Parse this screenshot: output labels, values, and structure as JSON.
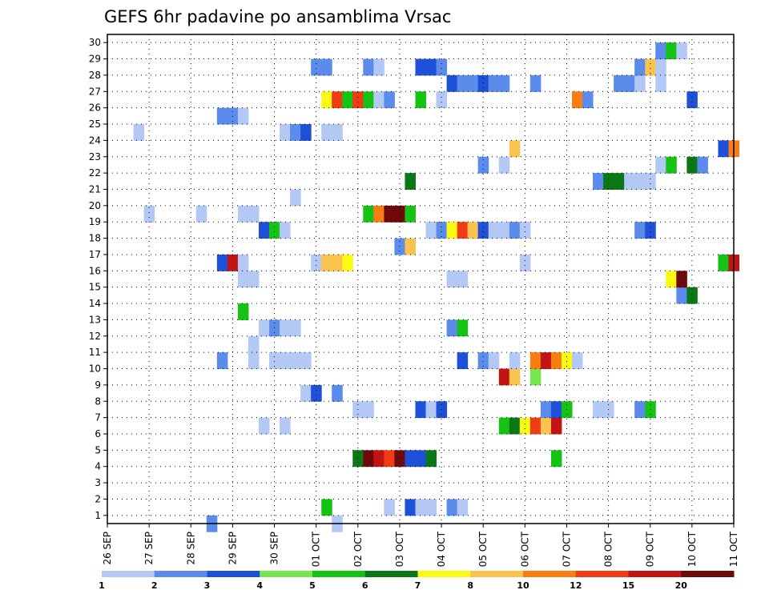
{
  "chart_data": {
    "type": "heatmap",
    "title": "GEFS 6hr padavine po ansamblima Vrsac",
    "xlabel": "",
    "ylabel": "",
    "x_tick_labels": [
      "26 SEP",
      "27 SEP",
      "28 SEP",
      "29 SEP",
      "30 SEP",
      "01 OCT",
      "02 OCT",
      "03 OCT",
      "04 OCT",
      "05 OCT",
      "06 OCT",
      "07 OCT",
      "08 OCT",
      "09 OCT",
      "10 OCT",
      "11 OCT"
    ],
    "y_tick_labels": [
      "1",
      "2",
      "3",
      "4",
      "5",
      "6",
      "7",
      "8",
      "9",
      "10",
      "11",
      "12",
      "13",
      "14",
      "15",
      "16",
      "17",
      "18",
      "19",
      "20",
      "21",
      "22",
      "23",
      "24",
      "25",
      "26",
      "27",
      "28",
      "29",
      "30"
    ],
    "xlim": [
      0,
      60
    ],
    "ylim": [
      0,
      30
    ],
    "grid": true,
    "colorbar": {
      "placement": "bottom",
      "labels": [
        "1",
        "2",
        "3",
        "4",
        "5",
        "6",
        "7",
        "8",
        "10",
        "12",
        "15",
        "20"
      ],
      "colors": [
        "#b4c8f5",
        "#5c8ceb",
        "#1e50d8",
        "#78e650",
        "#14c314",
        "#0a7814",
        "#fafa14",
        "#fac350",
        "#fa7d14",
        "#f03c14",
        "#c31414",
        "#6e0a0a"
      ]
    },
    "cells": [
      [
        0,
        10,
        2
      ],
      [
        0,
        22,
        1
      ],
      [
        1,
        21,
        5
      ],
      [
        1,
        27,
        1
      ],
      [
        1,
        29,
        3
      ],
      [
        1,
        30,
        1
      ],
      [
        1,
        31,
        1
      ],
      [
        1,
        33,
        2
      ],
      [
        1,
        34,
        1
      ],
      [
        4,
        24,
        6
      ],
      [
        4,
        25,
        12
      ],
      [
        4,
        26,
        11
      ],
      [
        4,
        27,
        10
      ],
      [
        4,
        28,
        12
      ],
      [
        4,
        29,
        3
      ],
      [
        4,
        30,
        3
      ],
      [
        4,
        31,
        6
      ],
      [
        4,
        43,
        5
      ],
      [
        6,
        15,
        1
      ],
      [
        6,
        17,
        1
      ],
      [
        6,
        38,
        5
      ],
      [
        6,
        39,
        6
      ],
      [
        6,
        40,
        7
      ],
      [
        6,
        41,
        10
      ],
      [
        6,
        42,
        8
      ],
      [
        6,
        43,
        11
      ],
      [
        7,
        24,
        1
      ],
      [
        7,
        25,
        1
      ],
      [
        7,
        30,
        3
      ],
      [
        7,
        31,
        1
      ],
      [
        7,
        32,
        3
      ],
      [
        7,
        42,
        2
      ],
      [
        7,
        43,
        3
      ],
      [
        7,
        44,
        5
      ],
      [
        7,
        47,
        1
      ],
      [
        7,
        48,
        1
      ],
      [
        7,
        51,
        2
      ],
      [
        7,
        52,
        5
      ],
      [
        8,
        19,
        1
      ],
      [
        8,
        20,
        3
      ],
      [
        8,
        22,
        2
      ],
      [
        9,
        38,
        11
      ],
      [
        9,
        39,
        8
      ],
      [
        9,
        41,
        4
      ],
      [
        10,
        11,
        2
      ],
      [
        10,
        14,
        1
      ],
      [
        10,
        16,
        1
      ],
      [
        10,
        17,
        1
      ],
      [
        10,
        18,
        1
      ],
      [
        10,
        19,
        1
      ],
      [
        10,
        34,
        3
      ],
      [
        10,
        36,
        2
      ],
      [
        10,
        37,
        1
      ],
      [
        10,
        39,
        1
      ],
      [
        10,
        41,
        9
      ],
      [
        10,
        42,
        11
      ],
      [
        10,
        43,
        9
      ],
      [
        10,
        44,
        7
      ],
      [
        10,
        45,
        1
      ],
      [
        11,
        14,
        1
      ],
      [
        12,
        15,
        1
      ],
      [
        12,
        16,
        2
      ],
      [
        12,
        17,
        1
      ],
      [
        12,
        18,
        1
      ],
      [
        12,
        33,
        2
      ],
      [
        12,
        34,
        5
      ],
      [
        13,
        13,
        5
      ],
      [
        14,
        55,
        2
      ],
      [
        14,
        56,
        6
      ],
      [
        15,
        13,
        1
      ],
      [
        15,
        14,
        1
      ],
      [
        15,
        33,
        1
      ],
      [
        15,
        34,
        1
      ],
      [
        15,
        54,
        7
      ],
      [
        15,
        55,
        12
      ],
      [
        16,
        11,
        3
      ],
      [
        16,
        12,
        11
      ],
      [
        16,
        13,
        1
      ],
      [
        16,
        20,
        1
      ],
      [
        16,
        21,
        8
      ],
      [
        16,
        22,
        8
      ],
      [
        16,
        23,
        7
      ],
      [
        16,
        40,
        1
      ],
      [
        16,
        59,
        5
      ],
      [
        16,
        60,
        11
      ],
      [
        17,
        28,
        2
      ],
      [
        17,
        29,
        8
      ],
      [
        18,
        15,
        3
      ],
      [
        18,
        16,
        5
      ],
      [
        18,
        17,
        1
      ],
      [
        18,
        31,
        1
      ],
      [
        18,
        32,
        2
      ],
      [
        18,
        33,
        7
      ],
      [
        18,
        34,
        10
      ],
      [
        18,
        35,
        8
      ],
      [
        18,
        36,
        3
      ],
      [
        18,
        37,
        1
      ],
      [
        18,
        38,
        1
      ],
      [
        18,
        39,
        2
      ],
      [
        18,
        40,
        1
      ],
      [
        18,
        51,
        2
      ],
      [
        18,
        52,
        3
      ],
      [
        19,
        4,
        1
      ],
      [
        19,
        9,
        1
      ],
      [
        19,
        13,
        1
      ],
      [
        19,
        14,
        1
      ],
      [
        19,
        25,
        5
      ],
      [
        19,
        26,
        9
      ],
      [
        19,
        27,
        12
      ],
      [
        19,
        28,
        12
      ],
      [
        19,
        29,
        5
      ],
      [
        20,
        18,
        1
      ],
      [
        21,
        29,
        6
      ],
      [
        21,
        47,
        2
      ],
      [
        21,
        48,
        6
      ],
      [
        21,
        49,
        6
      ],
      [
        21,
        50,
        1
      ],
      [
        21,
        51,
        1
      ],
      [
        21,
        52,
        1
      ],
      [
        22,
        36,
        2
      ],
      [
        22,
        38,
        1
      ],
      [
        22,
        53,
        1
      ],
      [
        22,
        54,
        5
      ],
      [
        22,
        56,
        6
      ],
      [
        22,
        57,
        2
      ],
      [
        23,
        39,
        8
      ],
      [
        23,
        59,
        3
      ],
      [
        23,
        60,
        9
      ],
      [
        24,
        3,
        1
      ],
      [
        24,
        17,
        1
      ],
      [
        24,
        18,
        2
      ],
      [
        24,
        19,
        3
      ],
      [
        24,
        21,
        1
      ],
      [
        24,
        22,
        1
      ],
      [
        25,
        11,
        2
      ],
      [
        25,
        12,
        2
      ],
      [
        25,
        13,
        1
      ],
      [
        26,
        21,
        7
      ],
      [
        26,
        22,
        10
      ],
      [
        26,
        23,
        5
      ],
      [
        26,
        24,
        10
      ],
      [
        26,
        25,
        5
      ],
      [
        26,
        26,
        1
      ],
      [
        26,
        27,
        2
      ],
      [
        26,
        30,
        5
      ],
      [
        26,
        32,
        1
      ],
      [
        26,
        45,
        9
      ],
      [
        26,
        46,
        2
      ],
      [
        26,
        56,
        3
      ],
      [
        27,
        33,
        3
      ],
      [
        27,
        34,
        2
      ],
      [
        27,
        35,
        2
      ],
      [
        27,
        36,
        3
      ],
      [
        27,
        37,
        2
      ],
      [
        27,
        38,
        2
      ],
      [
        27,
        41,
        2
      ],
      [
        27,
        49,
        2
      ],
      [
        27,
        50,
        2
      ],
      [
        27,
        51,
        1
      ],
      [
        27,
        53,
        1
      ],
      [
        28,
        20,
        2
      ],
      [
        28,
        21,
        2
      ],
      [
        28,
        25,
        2
      ],
      [
        28,
        26,
        1
      ],
      [
        28,
        30,
        3
      ],
      [
        28,
        31,
        3
      ],
      [
        28,
        32,
        2
      ],
      [
        28,
        51,
        2
      ],
      [
        28,
        52,
        8
      ],
      [
        28,
        53,
        1
      ],
      [
        29,
        53,
        2
      ],
      [
        29,
        54,
        5
      ],
      [
        29,
        55,
        1
      ]
    ]
  }
}
